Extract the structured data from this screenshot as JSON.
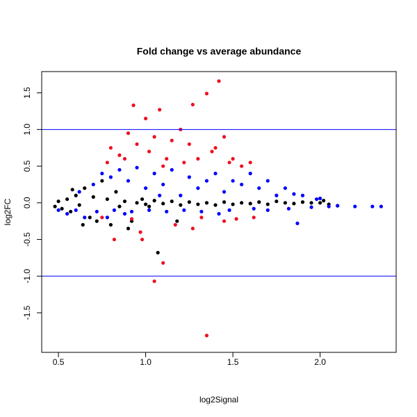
{
  "chart_data": {
    "type": "scatter",
    "title": "Fold change vs average abundance",
    "x_label": "log2Signal",
    "y_label": "log2FC",
    "xlim": [
      0.404,
      2.436
    ],
    "ylim": [
      -2.04,
      1.79
    ],
    "xticks": [
      {
        "value": 0.5,
        "label": "0.5"
      },
      {
        "value": 1.0,
        "label": "1.0"
      },
      {
        "value": 1.5,
        "label": "1.5"
      },
      {
        "value": 2.0,
        "label": "2.0"
      }
    ],
    "yticks": [
      {
        "value": -1.5,
        "label": "-1.5"
      },
      {
        "value": -1.0,
        "label": "-1.0"
      },
      {
        "value": -0.5,
        "label": "-0.5"
      },
      {
        "value": 0.0,
        "label": "0.0"
      },
      {
        "value": 0.5,
        "label": "0.5"
      },
      {
        "value": 1.0,
        "label": "1.0"
      },
      {
        "value": 1.5,
        "label": "1.5"
      }
    ],
    "hlines": [
      1,
      -1
    ],
    "hline_color": "#0000ff",
    "series": [
      {
        "color": "#000000",
        "x": [
          0.48,
          0.5,
          0.52,
          0.55,
          0.57,
          0.6,
          0.62,
          0.65,
          0.68,
          0.7,
          0.72,
          0.75,
          0.78,
          0.8,
          0.83,
          0.85,
          0.88,
          0.9,
          0.95,
          1.0,
          1.05,
          1.07,
          1.1,
          1.15,
          1.2,
          1.25,
          1.3,
          1.35,
          1.4,
          1.45,
          1.5,
          1.55,
          1.6,
          1.65,
          1.7,
          1.75,
          1.8,
          1.85,
          1.9,
          1.95,
          2.0,
          2.05,
          2.1,
          0.58,
          0.64,
          0.92,
          0.98,
          1.02,
          1.18,
          2.02
        ],
        "values": [
          -0.05,
          0.02,
          -0.08,
          0.05,
          -0.12,
          0.1,
          -0.03,
          0.2,
          -0.2,
          0.08,
          -0.25,
          0.3,
          0.05,
          -0.3,
          0.15,
          -0.05,
          0.02,
          -0.35,
          0.0,
          -0.02,
          0.03,
          -0.68,
          -0.01,
          0.02,
          -0.03,
          0.01,
          -0.02,
          0.0,
          -0.03,
          0.01,
          -0.02,
          0.0,
          -0.01,
          0.01,
          -0.02,
          0.02,
          0.0,
          -0.01,
          0.01,
          0.0,
          0.0,
          -0.02,
          -0.04,
          0.18,
          -0.3,
          -0.25,
          0.05,
          -0.05,
          -0.25,
          0.03
        ]
      },
      {
        "color": "#0000ff",
        "x": [
          0.5,
          0.55,
          0.6,
          0.62,
          0.65,
          0.7,
          0.72,
          0.75,
          0.8,
          0.82,
          0.85,
          0.9,
          0.92,
          0.95,
          1.0,
          1.02,
          1.05,
          1.1,
          1.12,
          1.15,
          1.2,
          1.22,
          1.25,
          1.3,
          1.32,
          1.35,
          1.4,
          1.45,
          1.48,
          1.5,
          1.55,
          1.6,
          1.62,
          1.65,
          1.7,
          1.75,
          1.8,
          1.82,
          1.85,
          1.9,
          1.95,
          2.0,
          2.05,
          2.1,
          2.2,
          2.3,
          2.35,
          0.88,
          1.08,
          1.42,
          1.7,
          1.87,
          1.98,
          0.78
        ],
        "values": [
          -0.1,
          -0.15,
          -0.1,
          0.15,
          -0.2,
          0.25,
          -0.12,
          0.4,
          0.35,
          -0.1,
          0.45,
          0.3,
          -0.12,
          0.48,
          0.2,
          -0.1,
          0.4,
          0.25,
          -0.12,
          0.45,
          0.1,
          -0.1,
          0.35,
          0.2,
          -0.12,
          0.3,
          0.4,
          0.15,
          -0.1,
          0.3,
          0.25,
          0.4,
          -0.08,
          0.2,
          0.3,
          0.1,
          0.2,
          -0.08,
          0.12,
          0.1,
          -0.06,
          0.06,
          -0.05,
          -0.04,
          -0.05,
          -0.05,
          -0.05,
          -0.15,
          0.1,
          -0.15,
          -0.1,
          -0.28,
          0.05,
          -0.2
        ]
      },
      {
        "color": "#ee1122",
        "x": [
          0.75,
          0.78,
          0.8,
          0.82,
          0.85,
          0.88,
          0.9,
          0.92,
          0.93,
          0.95,
          0.97,
          1.0,
          1.02,
          1.05,
          1.05,
          1.08,
          1.1,
          1.12,
          1.15,
          1.17,
          1.2,
          1.22,
          1.25,
          1.27,
          1.3,
          1.32,
          1.35,
          1.35,
          1.38,
          1.42,
          1.45,
          1.48,
          1.5,
          1.52,
          1.55,
          1.6,
          1.62,
          1.45,
          0.98,
          1.1,
          1.27,
          1.4
        ],
        "values": [
          -0.2,
          0.55,
          0.75,
          -0.5,
          0.65,
          0.6,
          0.95,
          -0.22,
          1.33,
          0.8,
          -0.4,
          1.15,
          0.7,
          -1.07,
          0.9,
          1.27,
          -0.82,
          0.6,
          0.85,
          -0.3,
          1.0,
          0.55,
          0.8,
          1.34,
          0.6,
          -0.2,
          1.49,
          -1.81,
          0.7,
          1.66,
          0.9,
          0.55,
          0.6,
          -0.22,
          0.5,
          0.55,
          -0.2,
          -0.25,
          -0.5,
          0.5,
          -0.35,
          0.75
        ]
      }
    ]
  }
}
